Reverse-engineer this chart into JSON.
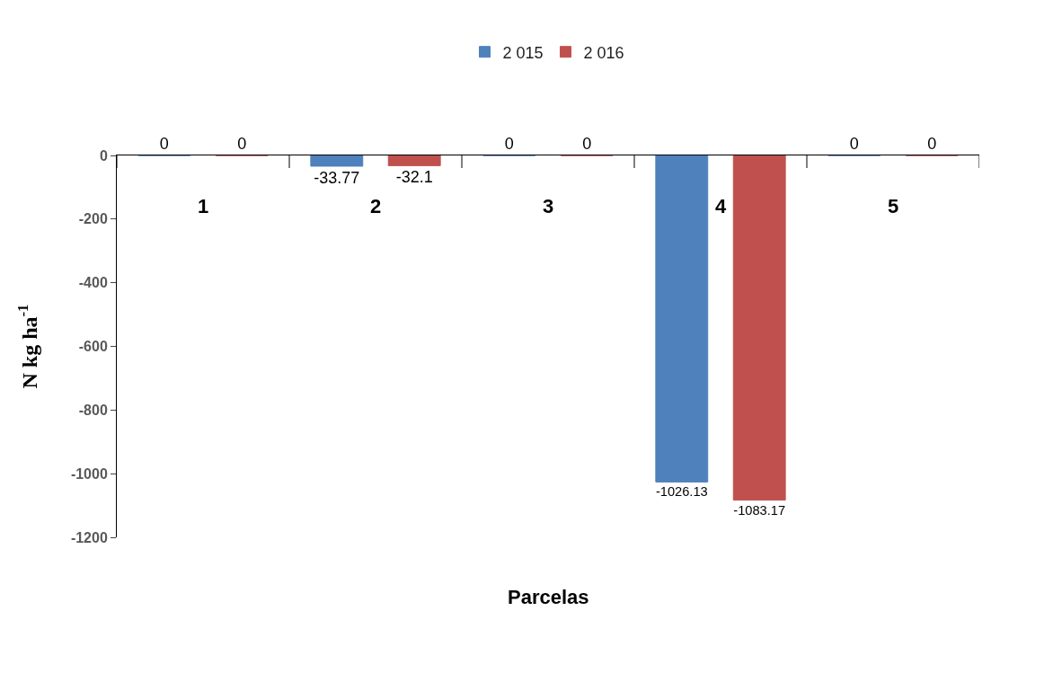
{
  "chart_data": {
    "type": "bar",
    "xlabel": "Parcelas",
    "ylabel": "N kg ha$^{-1}$",
    "categories": [
      "1",
      "2",
      "3",
      "4",
      "5"
    ],
    "series": [
      {
        "name": "2 015",
        "color": "#4f81bd",
        "values": [
          0,
          -33.77,
          0,
          -1026.13,
          0
        ]
      },
      {
        "name": "2 016",
        "color": "#c0504d",
        "values": [
          0,
          -32.1,
          0,
          -1083.17,
          0
        ]
      }
    ],
    "ylim": [
      -1200,
      0
    ],
    "yticks": [
      -1200,
      -1000,
      -800,
      -600,
      -400,
      -200,
      0
    ],
    "data_labels": true,
    "legend": "top"
  }
}
